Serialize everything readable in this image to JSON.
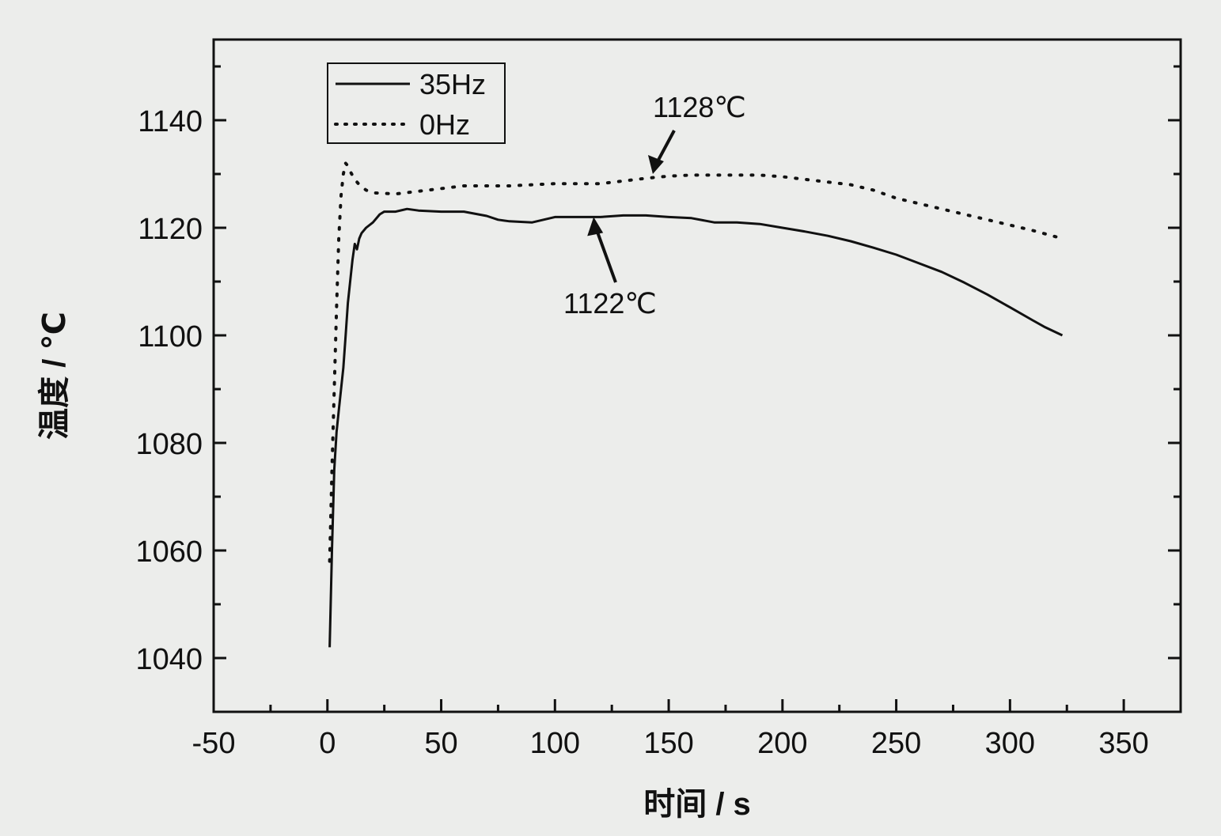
{
  "chart_data": {
    "type": "line",
    "xlabel": "时间 / s",
    "ylabel": "温度 / ℃",
    "xlim": [
      -50,
      375
    ],
    "ylim": [
      1030,
      1155
    ],
    "x_ticks": [
      -50,
      0,
      50,
      100,
      150,
      200,
      250,
      300,
      350
    ],
    "y_ticks": [
      1040,
      1060,
      1080,
      1100,
      1120,
      1140
    ],
    "grid": false,
    "legend_position": "top-left",
    "series": [
      {
        "name": "35Hz",
        "style": "solid",
        "points": [
          [
            1,
            1042
          ],
          [
            2,
            1060
          ],
          [
            3,
            1075
          ],
          [
            4,
            1082
          ],
          [
            5,
            1086
          ],
          [
            6,
            1090
          ],
          [
            7,
            1094
          ],
          [
            8,
            1100
          ],
          [
            9,
            1106
          ],
          [
            10,
            1110
          ],
          [
            11,
            1114
          ],
          [
            12,
            1117
          ],
          [
            13,
            1116
          ],
          [
            14,
            1118
          ],
          [
            15,
            1119
          ],
          [
            17,
            1120
          ],
          [
            20,
            1121
          ],
          [
            23,
            1122.5
          ],
          [
            25,
            1123
          ],
          [
            30,
            1123
          ],
          [
            35,
            1123.5
          ],
          [
            40,
            1123.2
          ],
          [
            50,
            1123
          ],
          [
            60,
            1123
          ],
          [
            70,
            1122.2
          ],
          [
            75,
            1121.5
          ],
          [
            80,
            1121.2
          ],
          [
            90,
            1121
          ],
          [
            100,
            1122
          ],
          [
            110,
            1122
          ],
          [
            120,
            1122
          ],
          [
            130,
            1122.3
          ],
          [
            140,
            1122.3
          ],
          [
            150,
            1122
          ],
          [
            160,
            1121.8
          ],
          [
            170,
            1121
          ],
          [
            180,
            1121
          ],
          [
            190,
            1120.7
          ],
          [
            200,
            1120
          ],
          [
            210,
            1119.3
          ],
          [
            220,
            1118.5
          ],
          [
            230,
            1117.5
          ],
          [
            240,
            1116.3
          ],
          [
            250,
            1115
          ],
          [
            260,
            1113.4
          ],
          [
            270,
            1111.8
          ],
          [
            280,
            1109.8
          ],
          [
            290,
            1107.6
          ],
          [
            300,
            1105.2
          ],
          [
            310,
            1102.8
          ],
          [
            315,
            1101.6
          ],
          [
            323,
            1100
          ]
        ]
      },
      {
        "name": "0Hz",
        "style": "dotted",
        "points": [
          [
            1,
            1058
          ],
          [
            2,
            1075
          ],
          [
            3,
            1090
          ],
          [
            4,
            1105
          ],
          [
            5,
            1118
          ],
          [
            6,
            1126
          ],
          [
            7,
            1130
          ],
          [
            8,
            1132
          ],
          [
            9,
            1131.5
          ],
          [
            10,
            1130.5
          ],
          [
            12,
            1129
          ],
          [
            14,
            1128
          ],
          [
            17,
            1127
          ],
          [
            20,
            1126.5
          ],
          [
            30,
            1126.3
          ],
          [
            40,
            1126.8
          ],
          [
            50,
            1127.3
          ],
          [
            60,
            1127.8
          ],
          [
            80,
            1127.8
          ],
          [
            100,
            1128.2
          ],
          [
            120,
            1128.2
          ],
          [
            130,
            1128.7
          ],
          [
            140,
            1129.2
          ],
          [
            150,
            1129.6
          ],
          [
            160,
            1129.8
          ],
          [
            170,
            1129.8
          ],
          [
            180,
            1129.8
          ],
          [
            190,
            1129.8
          ],
          [
            200,
            1129.5
          ],
          [
            210,
            1129
          ],
          [
            220,
            1128.5
          ],
          [
            230,
            1128
          ],
          [
            240,
            1127
          ],
          [
            250,
            1125.5
          ],
          [
            260,
            1124.5
          ],
          [
            270,
            1123.5
          ],
          [
            280,
            1122.5
          ],
          [
            290,
            1121.5
          ],
          [
            300,
            1120.5
          ],
          [
            310,
            1119.5
          ],
          [
            323,
            1118
          ]
        ]
      }
    ],
    "annotations": [
      {
        "text": "1128℃",
        "x": 143,
        "y": 1130
      },
      {
        "text": "1122℃",
        "x": 117,
        "y": 1122
      }
    ]
  }
}
